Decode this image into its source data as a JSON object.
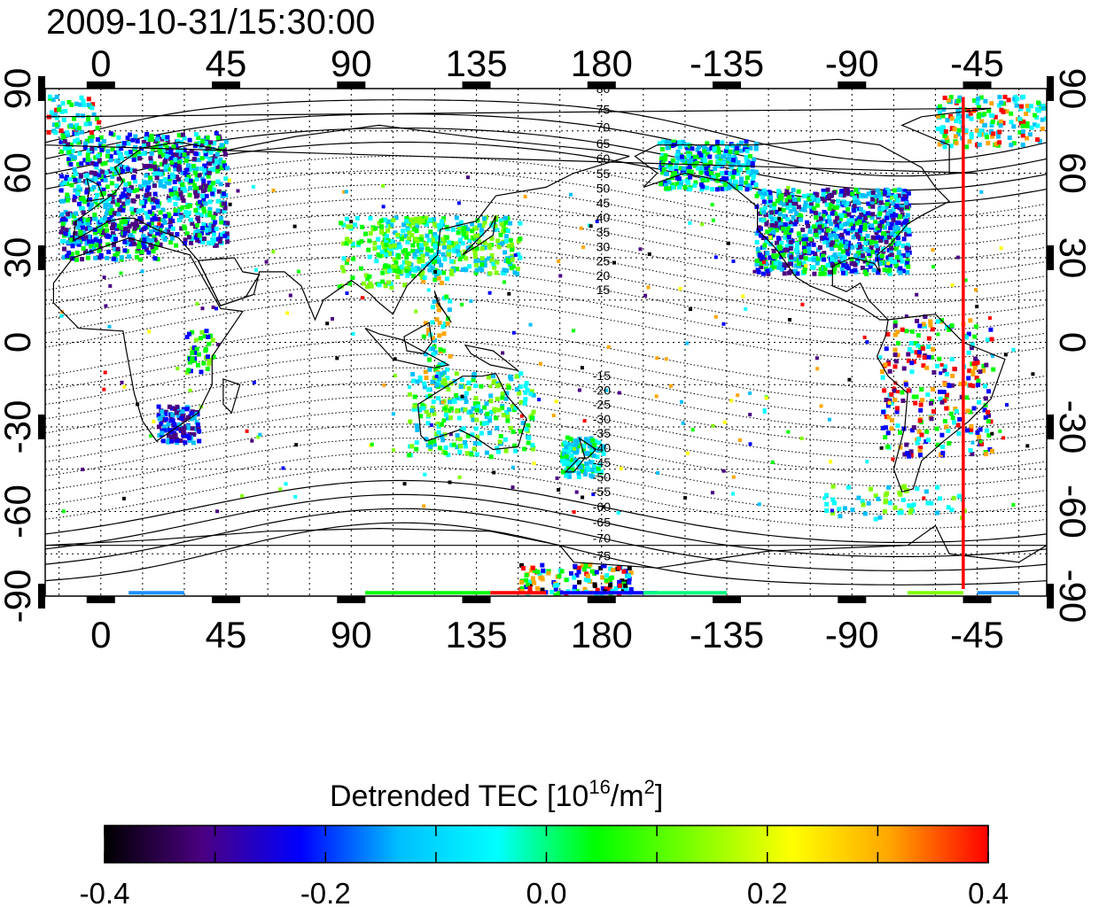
{
  "title": "2009-10-31/15:30:00",
  "map": {
    "lon_ticks": [
      "0",
      "45",
      "90",
      "135",
      "180",
      "-135",
      "-90",
      "-45"
    ],
    "lon_tick_values": [
      0,
      45,
      90,
      135,
      180,
      225,
      270,
      315
    ],
    "lat_ticks": [
      "90",
      "60",
      "30",
      "0",
      "-30",
      "-60",
      "-90"
    ],
    "lat_tick_values": [
      90,
      60,
      30,
      0,
      -30,
      -60,
      -90
    ],
    "lon_range": [
      -20,
      340
    ],
    "lat_range": [
      -90,
      90
    ],
    "grid": true,
    "grid_lon_step": 15,
    "grid_lat_step": 15,
    "terminator_lon": 310,
    "terminator_color": "#ff0000",
    "contour_labels_north": [
      "80",
      "75",
      "70",
      "65",
      "60",
      "55",
      "50",
      "45",
      "40",
      "35",
      "30",
      "25",
      "20",
      "15"
    ],
    "contour_labels_south": [
      "-15",
      "-20",
      "-25",
      "-30",
      "-35",
      "-40",
      "-45",
      "-50",
      "-55",
      "-60",
      "-65",
      "-70",
      "-75"
    ],
    "contour_label_lon": 180
  },
  "colorbar": {
    "title_main": "Detrended TEC  [10",
    "title_sup1": "16",
    "title_mid": "/m",
    "title_sup2": "2",
    "title_end": "]",
    "ticks": [
      "-0.4",
      "-0.2",
      "0.0",
      "0.2",
      "0.4"
    ],
    "tick_values": [
      -0.4,
      -0.2,
      0.0,
      0.2,
      0.4
    ],
    "range": [
      -0.4,
      0.4
    ],
    "colors": [
      "#000000",
      "#4b0082",
      "#0000ff",
      "#00bfff",
      "#00ffff",
      "#00ff00",
      "#7fff00",
      "#ffff00",
      "#ffa500",
      "#ff0000"
    ]
  }
}
